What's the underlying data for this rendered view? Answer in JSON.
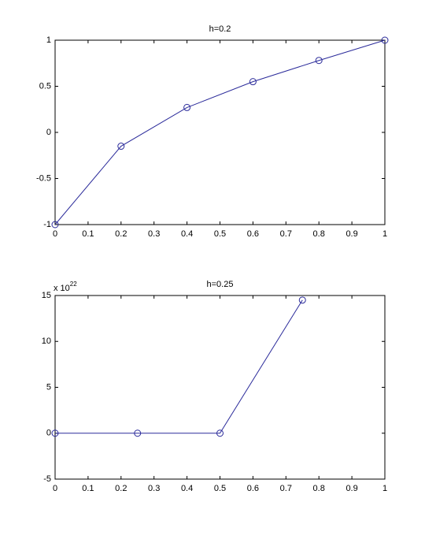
{
  "chart_data": [
    {
      "type": "line",
      "title": "h=0.2",
      "x": [
        0,
        0.2,
        0.4,
        0.6,
        0.8,
        1
      ],
      "series": [
        {
          "color": "#2a2a9a",
          "marker": "circle",
          "values": [
            -1,
            -0.15,
            0.27,
            0.55,
            0.78,
            1
          ]
        }
      ],
      "xlim": [
        0,
        1
      ],
      "xticks": [
        0,
        0.1,
        0.2,
        0.3,
        0.4,
        0.5,
        0.6,
        0.7,
        0.8,
        0.9,
        1
      ],
      "ylim": [
        -1,
        1
      ],
      "yticks": [
        -1,
        -0.5,
        0,
        0.5,
        1
      ],
      "grid": false
    },
    {
      "type": "line",
      "title": "h=0.25",
      "axis_multiplier": {
        "base": "x 10",
        "exponent": "22"
      },
      "x": [
        0,
        0.25,
        0.5,
        0.75
      ],
      "series": [
        {
          "color": "#2a2a9a",
          "marker": "circle",
          "values": [
            0,
            0,
            0,
            14.5
          ]
        }
      ],
      "xlim": [
        0,
        1
      ],
      "xticks": [
        0,
        0.1,
        0.2,
        0.3,
        0.4,
        0.5,
        0.6,
        0.7,
        0.8,
        0.9,
        1
      ],
      "ylim": [
        -5,
        15
      ],
      "yticks": [
        -5,
        0,
        5,
        10,
        15
      ],
      "grid": false
    }
  ]
}
